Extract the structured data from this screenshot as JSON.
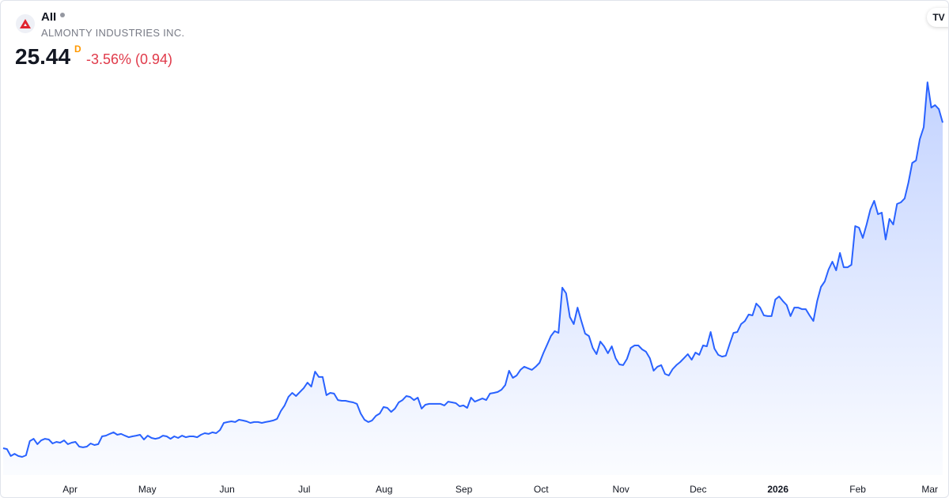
{
  "header": {
    "ticker": "AII",
    "company": "ALMONTY INDUSTRIES INC.",
    "price": "25.44",
    "interval": "D",
    "change": "-3.56% (0.94)",
    "logo_icon": "almonty-logo-icon",
    "brand_icon": "tradingview-logo-icon",
    "brand_text": "TV"
  },
  "colors": {
    "line": "#2962ff",
    "negative": "#e03a4a",
    "interval": "#ff9800"
  },
  "chart_data": {
    "type": "area",
    "title": "",
    "xlabel": "",
    "ylabel": "",
    "x_range": [
      "2025-03-06",
      "2026-03-06"
    ],
    "grid": false,
    "legend": "none",
    "y_axis_visible": false,
    "x_ticks": [
      {
        "label": "Apr",
        "date": "2025-04-01",
        "bold": false
      },
      {
        "label": "May",
        "date": "2025-05-01",
        "bold": false
      },
      {
        "label": "Jun",
        "date": "2025-06-01",
        "bold": false
      },
      {
        "label": "Jul",
        "date": "2025-07-01",
        "bold": false
      },
      {
        "label": "Aug",
        "date": "2025-08-01",
        "bold": false
      },
      {
        "label": "Sep",
        "date": "2025-09-01",
        "bold": false
      },
      {
        "label": "Oct",
        "date": "2025-10-01",
        "bold": false
      },
      {
        "label": "Nov",
        "date": "2025-11-01",
        "bold": false
      },
      {
        "label": "Dec",
        "date": "2025-12-01",
        "bold": false
      },
      {
        "label": "2026",
        "date": "2026-01-01",
        "bold": true
      },
      {
        "label": "Feb",
        "date": "2026-02-01",
        "bold": false
      },
      {
        "label": "Mar",
        "date": "2026-03-01",
        "bold": false
      }
    ],
    "values": [
      2.66,
      2.6,
      2.11,
      2.27,
      2.11,
      2.05,
      2.16,
      3.16,
      3.32,
      2.94,
      3.21,
      3.32,
      3.27,
      2.99,
      3.1,
      3.05,
      3.21,
      2.94,
      3.05,
      3.1,
      2.77,
      2.72,
      2.77,
      2.99,
      2.88,
      2.94,
      3.49,
      3.54,
      3.66,
      3.77,
      3.6,
      3.66,
      3.54,
      3.43,
      3.49,
      3.54,
      3.6,
      3.27,
      3.54,
      3.38,
      3.32,
      3.38,
      3.54,
      3.49,
      3.32,
      3.49,
      3.38,
      3.54,
      3.43,
      3.49,
      3.49,
      3.43,
      3.6,
      3.71,
      3.66,
      3.77,
      3.71,
      3.93,
      4.43,
      4.49,
      4.54,
      4.49,
      4.65,
      4.6,
      4.54,
      4.43,
      4.49,
      4.49,
      4.43,
      4.49,
      4.54,
      4.6,
      4.71,
      5.26,
      5.65,
      6.25,
      6.53,
      6.31,
      6.59,
      6.86,
      7.25,
      6.97,
      8.02,
      7.64,
      7.64,
      6.37,
      6.53,
      6.48,
      6.03,
      5.98,
      5.98,
      5.92,
      5.87,
      5.76,
      5.09,
      4.65,
      4.49,
      4.6,
      4.93,
      5.09,
      5.54,
      5.48,
      5.2,
      5.43,
      5.87,
      6.03,
      6.31,
      6.25,
      6.03,
      6.2,
      5.43,
      5.7,
      5.76,
      5.76,
      5.76,
      5.76,
      5.65,
      5.92,
      5.87,
      5.81,
      5.59,
      5.65,
      5.48,
      6.2,
      5.92,
      6.03,
      6.14,
      6.03,
      6.48,
      6.53,
      6.59,
      6.75,
      7.08,
      8.08,
      7.58,
      7.75,
      8.14,
      8.36,
      8.25,
      8.14,
      8.36,
      8.63,
      9.3,
      9.9,
      10.51,
      10.85,
      10.73,
      13.89,
      13.5,
      11.84,
      11.34,
      12.5,
      11.56,
      10.68,
      10.51,
      9.68,
      9.24,
      10.12,
      9.79,
      9.3,
      9.79,
      8.96,
      8.52,
      8.47,
      8.91,
      9.68,
      9.85,
      9.85,
      9.57,
      9.41,
      8.96,
      8.08,
      8.36,
      8.47,
      7.86,
      7.75,
      8.19,
      8.47,
      8.69,
      8.96,
      9.24,
      8.85,
      9.35,
      9.19,
      9.85,
      9.79,
      10.79,
      9.63,
      9.19,
      9.07,
      9.13,
      9.96,
      10.73,
      10.79,
      11.34,
      11.56,
      12.01,
      11.95,
      12.78,
      12.5,
      11.95,
      11.9,
      11.9,
      13.06,
      13.28,
      12.95,
      12.67,
      11.9,
      12.5,
      12.5,
      12.39,
      12.39,
      11.95,
      11.56,
      12.95,
      13.94,
      14.33,
      15.16,
      15.71,
      15.1,
      16.32,
      15.32,
      15.32,
      15.49,
      18.2,
      18.09,
      17.37,
      18.31,
      19.36,
      19.97,
      19.03,
      19.14,
      17.26,
      18.7,
      18.31,
      19.75,
      19.86,
      20.13,
      21.24,
      22.62,
      22.79,
      24.28,
      25.11,
      28.26,
      26.49,
      26.66,
      26.38,
      25.44
    ]
  }
}
